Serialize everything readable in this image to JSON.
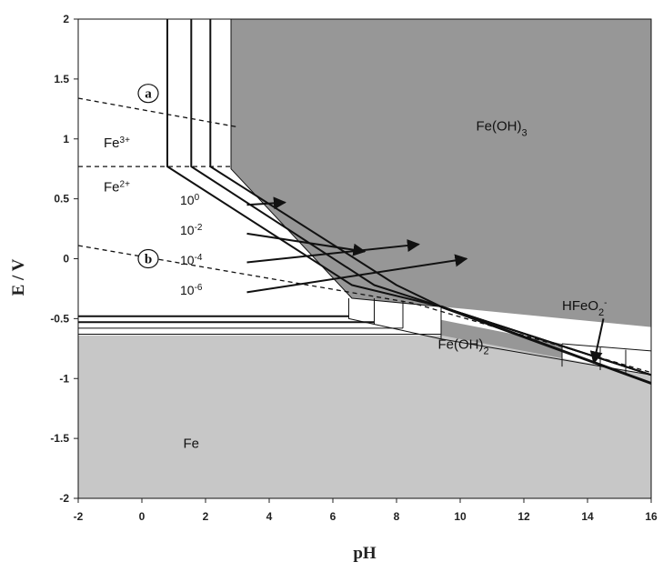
{
  "chart_data": {
    "type": "line",
    "title": "",
    "xlabel": "pH",
    "ylabel": "E / V",
    "xlim": [
      -2,
      16
    ],
    "ylim": [
      -2,
      2
    ],
    "xticks": [
      "-2",
      "0",
      "2",
      "4",
      "6",
      "8",
      "10",
      "12",
      "14",
      "16"
    ],
    "yticks": [
      "2",
      "1.5",
      "1",
      "0.5",
      "0",
      "-0.5",
      "-1",
      "-1.5",
      "-2"
    ],
    "grid": false,
    "colors": {
      "feoh3": "#979797",
      "fe": "#c7c7c7",
      "line": "#111111"
    },
    "regions": [
      {
        "name": "Fe(OH)3",
        "label_main": "Fe(OH)",
        "label_sub": "3",
        "label_at": [
          10.5,
          1.07
        ],
        "color": "#979797",
        "polygon": [
          [
            2.8,
            2
          ],
          [
            16,
            2
          ],
          [
            16,
            -0.57
          ],
          [
            9.4,
            -0.4
          ],
          [
            6.6,
            -0.33
          ],
          [
            2.8,
            0.75
          ]
        ]
      },
      {
        "name": "Fe(OH)2",
        "label_main": "Fe(OH)",
        "label_sub": "2",
        "label_at": [
          9.3,
          -0.75
        ],
        "color": "#979797",
        "polygon": [
          [
            9.4,
            -0.51
          ],
          [
            13.2,
            -0.71
          ],
          [
            13.2,
            -0.85
          ],
          [
            9.4,
            -0.67
          ]
        ]
      },
      {
        "name": "Fe",
        "label_main": "Fe",
        "label_sub": "",
        "label_at": [
          1.3,
          -1.58
        ],
        "color": "#c7c7c7",
        "polygon": [
          [
            -2,
            -0.64
          ],
          [
            9.4,
            -0.64
          ],
          [
            16,
            -0.97
          ],
          [
            16,
            -2
          ],
          [
            -2,
            -2
          ]
        ]
      }
    ],
    "ion_labels": [
      {
        "name": "Fe3+",
        "main": "Fe",
        "sup": "3+",
        "at": [
          -1.2,
          0.93
        ]
      },
      {
        "name": "Fe2+",
        "main": "Fe",
        "sup": "2+",
        "at": [
          -1.2,
          0.56
        ]
      },
      {
        "name": "HFeO2-",
        "main": "HFeO",
        "sub": "2",
        "sup": "-",
        "at": [
          13.2,
          -0.43
        ]
      }
    ],
    "concentrations": [
      "10^0",
      "10^-2",
      "10^-4",
      "10^-6"
    ],
    "conc_labels": [
      {
        "base": "10",
        "exp": "0",
        "at": [
          1.2,
          0.45
        ]
      },
      {
        "base": "10",
        "exp": "-2",
        "at": [
          1.2,
          0.2
        ]
      },
      {
        "base": "10",
        "exp": "-4",
        "at": [
          1.2,
          -0.05
        ]
      },
      {
        "base": "10",
        "exp": "-6",
        "at": [
          1.2,
          -0.3
        ]
      }
    ],
    "series": [
      {
        "points": [
          [
            0.8,
            2
          ],
          [
            0.8,
            0.77
          ],
          [
            6.6,
            -0.22
          ],
          [
            9.4,
            -0.4
          ],
          [
            16,
            -0.97
          ]
        ],
        "width": 2
      },
      {
        "points": [
          [
            1.55,
            2
          ],
          [
            1.55,
            0.77
          ],
          [
            7.3,
            -0.22
          ],
          [
            9.4,
            -0.4
          ],
          [
            16,
            -0.97
          ]
        ],
        "width": 2
      },
      {
        "points": [
          [
            2.15,
            2
          ],
          [
            2.15,
            0.77
          ],
          [
            8.0,
            -0.22
          ],
          [
            9.4,
            -0.4
          ],
          [
            16,
            -0.97
          ]
        ],
        "width": 2
      },
      {
        "points": [
          [
            2.8,
            2
          ],
          [
            2.8,
            0.75
          ],
          [
            6.6,
            -0.33
          ],
          [
            9.4,
            -0.4
          ]
        ],
        "width": 1
      },
      {
        "points": [
          [
            9.4,
            -0.4
          ],
          [
            16,
            -1.04
          ]
        ],
        "width": 3
      },
      {
        "points": [
          [
            6.5,
            -0.33
          ],
          [
            6.5,
            -0.5
          ]
        ],
        "width": 1
      },
      {
        "points": [
          [
            7.3,
            -0.33
          ],
          [
            7.3,
            -0.55
          ]
        ],
        "width": 1
      },
      {
        "points": [
          [
            8.2,
            -0.35
          ],
          [
            8.2,
            -0.58
          ]
        ],
        "width": 1
      },
      {
        "points": [
          [
            9.4,
            -0.4
          ],
          [
            9.4,
            -0.67
          ]
        ],
        "width": 1
      },
      {
        "points": [
          [
            13.2,
            -0.71
          ],
          [
            16,
            -0.77
          ]
        ],
        "width": 1
      },
      {
        "points": [
          [
            13.2,
            -0.71
          ],
          [
            13.2,
            -0.9
          ]
        ],
        "width": 1
      },
      {
        "points": [
          [
            14.4,
            -0.74
          ],
          [
            14.4,
            -0.93
          ]
        ],
        "width": 1
      },
      {
        "points": [
          [
            15.2,
            -0.76
          ],
          [
            15.2,
            -0.97
          ]
        ],
        "width": 1
      },
      {
        "points": [
          [
            6.5,
            -0.33
          ],
          [
            6.5,
            -0.5
          ],
          [
            9.4,
            -0.67
          ],
          [
            16,
            -0.97
          ]
        ],
        "width": 1
      },
      {
        "points": [
          [
            -2,
            -0.48
          ],
          [
            6.5,
            -0.48
          ]
        ],
        "width": 2
      },
      {
        "points": [
          [
            -2,
            -0.53
          ],
          [
            7.3,
            -0.53
          ]
        ],
        "width": 2
      },
      {
        "points": [
          [
            -2,
            -0.58
          ],
          [
            8.2,
            -0.58
          ]
        ],
        "width": 1
      },
      {
        "points": [
          [
            -2,
            -0.63
          ],
          [
            9.4,
            -0.63
          ]
        ],
        "width": 1
      }
    ],
    "dashed_lines": [
      {
        "points": [
          [
            -2,
            1.34
          ],
          [
            3,
            1.1
          ]
        ]
      },
      {
        "points": [
          [
            -2,
            0.77
          ],
          [
            2.8,
            0.77
          ]
        ]
      },
      {
        "points": [
          [
            -2,
            0.11
          ],
          [
            8.5,
            -0.37
          ],
          [
            16,
            -0.95
          ]
        ]
      }
    ],
    "arrows": [
      {
        "from": [
          3.3,
          0.45
        ],
        "to": [
          4.5,
          0.47
        ]
      },
      {
        "from": [
          3.3,
          0.21
        ],
        "to": [
          7.0,
          0.06
        ]
      },
      {
        "from": [
          3.3,
          -0.03
        ],
        "to": [
          8.7,
          0.12
        ]
      },
      {
        "from": [
          3.3,
          -0.28
        ],
        "to": [
          10.2,
          0.0
        ]
      },
      {
        "from": [
          14.5,
          -0.5
        ],
        "to": [
          14.2,
          -0.87
        ]
      }
    ],
    "line_tags": [
      {
        "text": "a",
        "at": [
          0.2,
          1.38
        ]
      },
      {
        "text": "b",
        "at": [
          0.2,
          0.0
        ]
      }
    ]
  }
}
